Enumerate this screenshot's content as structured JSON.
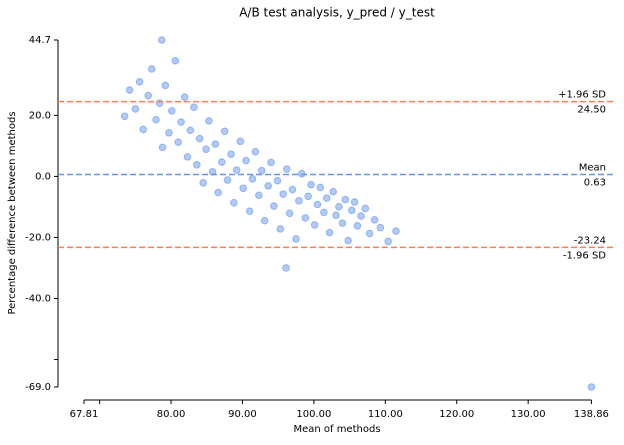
{
  "chart_data": {
    "type": "scatter",
    "title": "A/B test analysis, y_pred / y_test",
    "xlabel": "Mean of methods",
    "ylabel": "Percentage difference between methods",
    "xlim": [
      64.17,
      142.3
    ],
    "ylim": [
      -69.0,
      44.7
    ],
    "xticks": [
      67.81,
      {
        "value": 80,
        "label": "80.00"
      },
      {
        "value": 90,
        "label": "90.00"
      },
      {
        "value": 100,
        "label": "100.00"
      },
      {
        "value": 110,
        "label": "110.00"
      },
      {
        "value": 120,
        "label": "120.00"
      },
      {
        "value": 130,
        "label": "130.00"
      },
      138.86
    ],
    "xminor_ticks": [
      70
    ],
    "yticks": [
      44.7,
      {
        "value": 20,
        "label": "20.0"
      },
      {
        "value": 0,
        "label": "0.0"
      },
      {
        "value": -20,
        "label": "-20.0"
      },
      {
        "value": -40,
        "label": "-40.0"
      },
      {
        "value": -69,
        "label": "-69.0"
      }
    ],
    "yminor_ticks": [
      -60
    ],
    "color": "#6495ed",
    "x": [
      73.5,
      74.2,
      75.0,
      75.6,
      76.1,
      76.8,
      77.3,
      77.9,
      78.4,
      78.8,
      79.2,
      79.7,
      80.1,
      80.6,
      81.0,
      81.4,
      81.9,
      82.3,
      82.7,
      83.2,
      83.6,
      84.0,
      84.5,
      84.9,
      85.3,
      85.8,
      86.2,
      86.6,
      87.1,
      87.5,
      87.9,
      88.4,
      88.8,
      89.2,
      89.7,
      90.1,
      90.5,
      91.0,
      91.4,
      91.8,
      92.3,
      92.7,
      93.1,
      93.6,
      94.0,
      94.4,
      94.9,
      95.3,
      95.7,
      96.2,
      96.6,
      97.0,
      97.5,
      97.9,
      98.3,
      98.8,
      99.2,
      99.6,
      100.1,
      100.5,
      100.9,
      101.4,
      101.8,
      102.2,
      102.7,
      103.1,
      103.5,
      104.0,
      104.4,
      104.8,
      105.3,
      105.7,
      106.1,
      106.6,
      107.2,
      107.8,
      108.5,
      109.3,
      110.4,
      111.5,
      78.7,
      96.1,
      138.86
    ],
    "values": [
      19.7,
      28.3,
      22.1,
      31.0,
      15.4,
      26.5,
      35.2,
      18.6,
      24.0,
      9.5,
      29.8,
      14.3,
      21.5,
      37.9,
      11.2,
      17.8,
      26.0,
      6.4,
      15.1,
      22.7,
      3.8,
      12.4,
      -2.1,
      8.9,
      18.2,
      1.5,
      10.6,
      -5.3,
      4.7,
      14.8,
      -1.2,
      7.3,
      -8.6,
      2.1,
      11.5,
      -3.9,
      5.2,
      -11.4,
      -0.8,
      8.1,
      -6.2,
      1.9,
      -14.5,
      -3.1,
      4.6,
      -9.7,
      -1.4,
      -17.2,
      -5.8,
      2.4,
      -12.1,
      -4.3,
      -20.5,
      -8.0,
      0.9,
      -13.6,
      -6.5,
      -2.7,
      -15.9,
      -9.2,
      -3.6,
      -11.8,
      -7.1,
      -18.4,
      -5.0,
      -12.7,
      -9.9,
      -15.3,
      -7.6,
      -21.0,
      -11.1,
      -8.4,
      -16.2,
      -13.0,
      -10.5,
      -18.7,
      -14.2,
      -16.8,
      -21.3,
      -17.9,
      44.7,
      -30.0,
      -69.0
    ],
    "reference_lines": [
      {
        "value": 24.5,
        "color": "#ff7f50",
        "above": "+1.96 SD",
        "below": "24.50"
      },
      {
        "value": 0.63,
        "color": "#6495ed",
        "above": "Mean",
        "below": "0.63"
      },
      {
        "value": -23.24,
        "color": "#ff7f50",
        "above": "-23.24",
        "below": "-1.96 SD"
      }
    ]
  }
}
